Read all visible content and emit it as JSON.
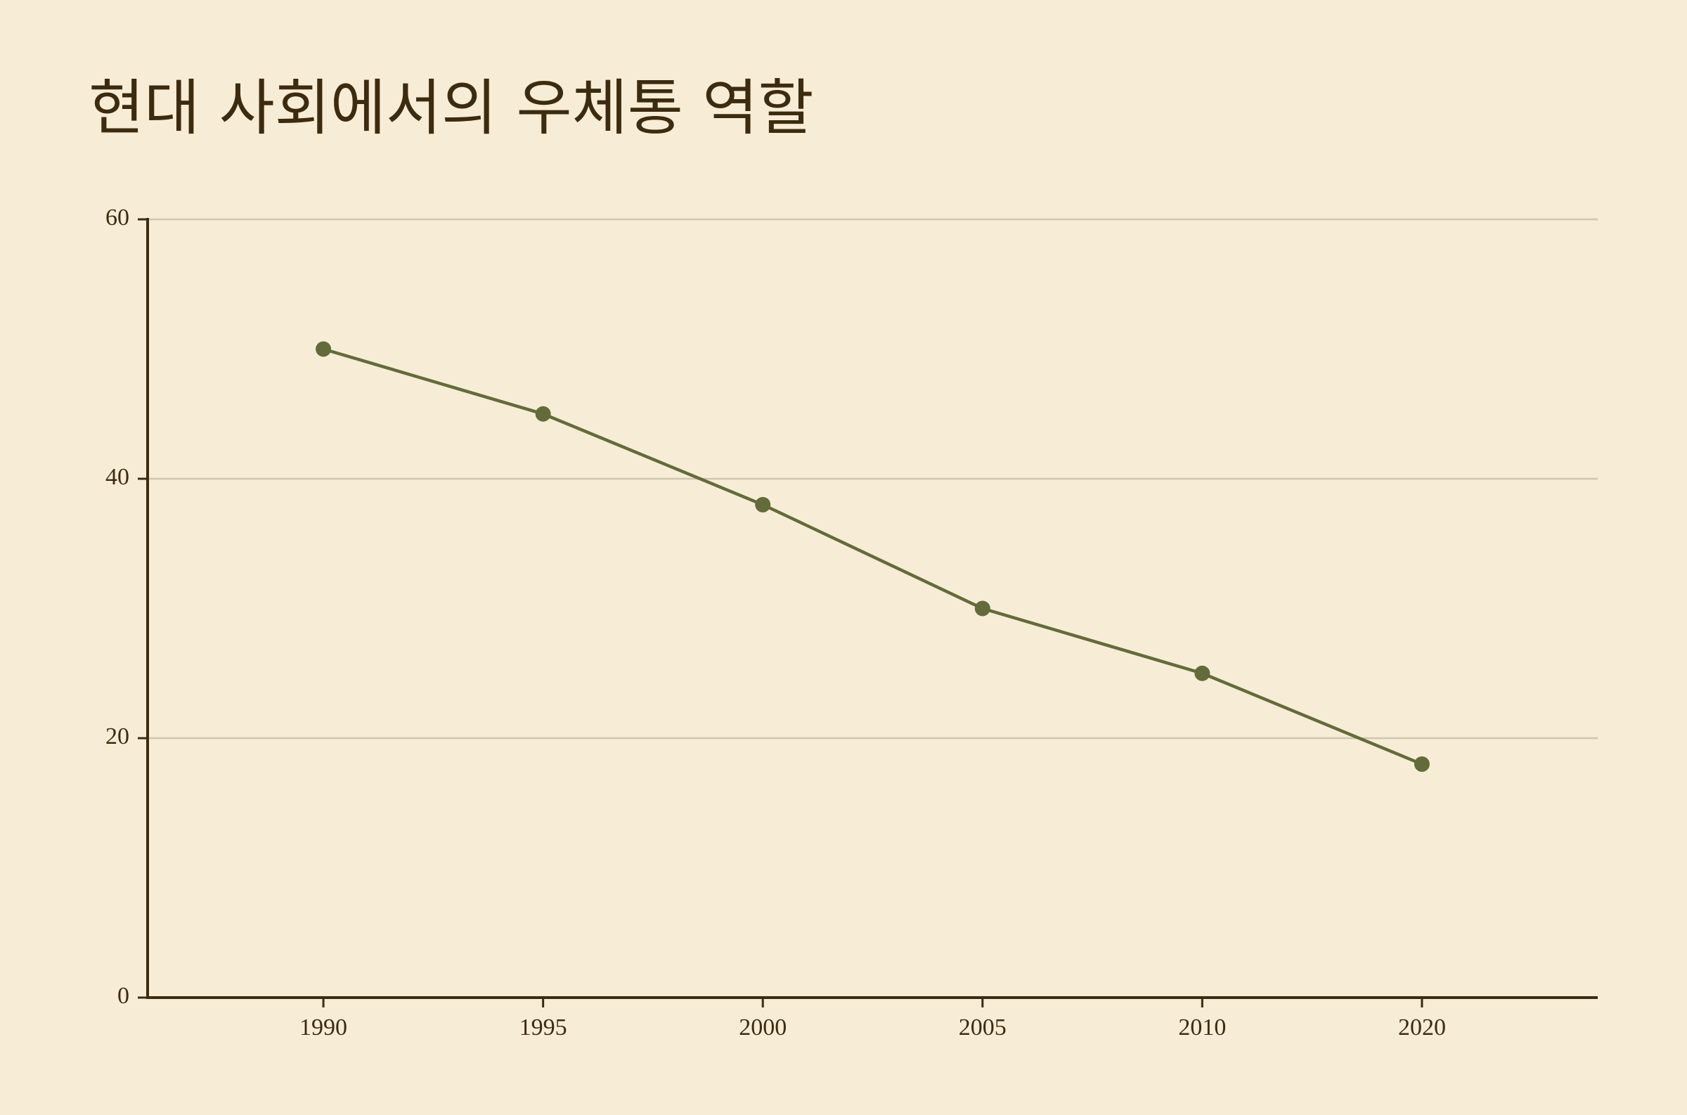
{
  "chart_data": {
    "type": "line",
    "title": "현대 사회에서의 우체통 역할",
    "categories": [
      "1990",
      "1995",
      "2000",
      "2005",
      "2010",
      "2020"
    ],
    "series": [
      {
        "name": "우체통 역할",
        "color": "#636b3a",
        "values": [
          50,
          45,
          38,
          30,
          25,
          18
        ]
      }
    ],
    "ylim": [
      0,
      60
    ],
    "yticks": [
      0,
      20,
      40,
      60
    ],
    "grid": true
  }
}
